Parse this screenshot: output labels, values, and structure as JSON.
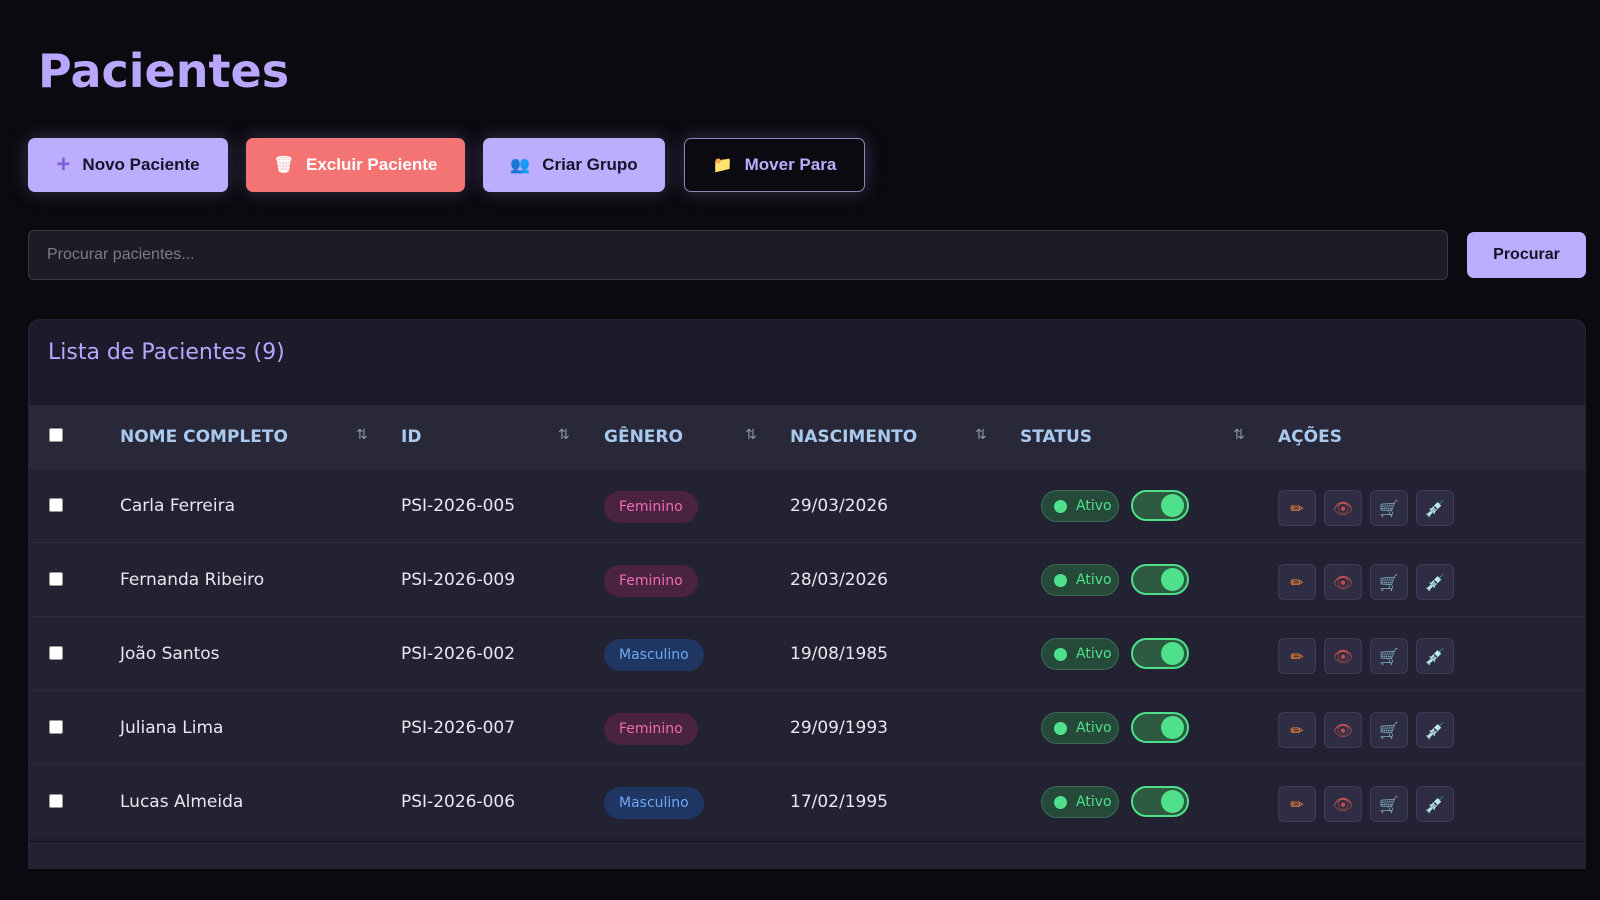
{
  "page_title": "Pacientes",
  "toolbar": {
    "new": {
      "label": "Novo Paciente",
      "icon": "plus-icon"
    },
    "delete": {
      "label": "Excluir Paciente",
      "icon": "trash-icon"
    },
    "group": {
      "label": "Criar Grupo",
      "icon": "users-icon"
    },
    "move": {
      "label": "Mover Para",
      "icon": "folder-icon"
    }
  },
  "search": {
    "placeholder": "Procurar pacientes...",
    "value": "",
    "button": "Procurar"
  },
  "list": {
    "title": "Lista de Pacientes (9)",
    "columns": [
      "NOME COMPLETO",
      "ID",
      "GÊNERO",
      "NASCIMENTO",
      "STATUS",
      "AÇÕES"
    ],
    "rows": [
      {
        "name": "Carla Ferreira",
        "id": "PSI-2026-005",
        "gender": "Feminino",
        "birth": "29/03/2026",
        "status": "Ativo",
        "active": true
      },
      {
        "name": "Fernanda Ribeiro",
        "id": "PSI-2026-009",
        "gender": "Feminino",
        "birth": "28/03/2026",
        "status": "Ativo",
        "active": true
      },
      {
        "name": "João Santos",
        "id": "PSI-2026-002",
        "gender": "Masculino",
        "birth": "19/08/1985",
        "status": "Ativo",
        "active": true
      },
      {
        "name": "Juliana Lima",
        "id": "PSI-2026-007",
        "gender": "Feminino",
        "birth": "29/09/1993",
        "status": "Ativo",
        "active": true
      },
      {
        "name": "Lucas Almeida",
        "id": "PSI-2026-006",
        "gender": "Masculino",
        "birth": "17/02/1995",
        "status": "Ativo",
        "active": true
      }
    ],
    "actions": [
      "edit-icon",
      "view-icon",
      "cart-icon",
      "syringe-icon"
    ]
  },
  "colors": {
    "accent": "#bcadff",
    "danger": "#f47373",
    "active": "#4ee08a",
    "female": "#f06bb0",
    "male": "#6ea8f5"
  }
}
